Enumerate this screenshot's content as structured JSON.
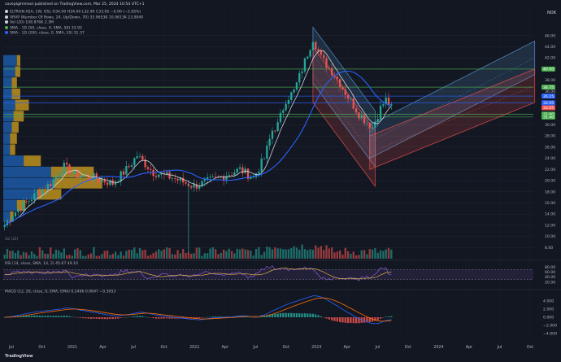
{
  "publisher": "saveplgimmeol published on TradingView.com, Mar 25, 2024 10:54 UTC+1",
  "currency": "NOK",
  "brand": "TradingView",
  "legend_lines": [
    {
      "text": "ELTRON ASA, 1W, OSL  O34.00 H34.00 L32.90 C33.05 −0.90 (−2.65%)",
      "color": "#d1d4dc"
    },
    {
      "text": "VRVP (Number Of Rows, 24, Up/Down, 70)  33.9653K  10.0613K  23.9040",
      "color": "#d1d4dc"
    },
    {
      "text": "Vol (20)  108.876K  2.3M",
      "color": "#d1d4dc"
    },
    {
      "text": "SMA - 1D (50, close, 0, SMA, 50)  33.95",
      "color": "#4caf50"
    },
    {
      "text": "SMA - 1D (200, close, 0, SMA, 20)  31.37",
      "color": "#2962ff"
    }
  ],
  "colors": {
    "up": "#26a69a",
    "down": "#ef5350",
    "sma_fast": "#e0e3eb",
    "sma_slow": "#2962ff",
    "vp_up": "#1e6fd0",
    "vp_down": "#d4a21e",
    "rsi": "#7e57c2",
    "macd": "#2962ff",
    "signal": "#ff6d00"
  },
  "chart_data": [
    {
      "type": "candlestick",
      "title": "ELTRON ASA, 1W, OSL",
      "ylim": [
        6,
        48
      ],
      "y_ticks": [
        8,
        10,
        12,
        14,
        16,
        18,
        20,
        22,
        24,
        26,
        28,
        30,
        32,
        34,
        36,
        38,
        40,
        42,
        44,
        46
      ],
      "x_ticks": [
        "Jul",
        "Oct",
        "2021",
        "Apr",
        "Jul",
        "Oct",
        "2022",
        "Apr",
        "Jul",
        "Oct",
        "2023",
        "Apr",
        "Jul",
        "Oct",
        "2024",
        "Apr",
        "Jul",
        "Oct"
      ],
      "weeks": 196,
      "history_weeks": 144,
      "anchor_points": [
        [
          0,
          12
        ],
        [
          3,
          14
        ],
        [
          9,
          16.5
        ],
        [
          17,
          19.5
        ],
        [
          22,
          22.5
        ],
        [
          26,
          21
        ],
        [
          33,
          20.5
        ],
        [
          40,
          19.5
        ],
        [
          46,
          22.5
        ],
        [
          49,
          24.5
        ],
        [
          55,
          21.5
        ],
        [
          62,
          20.5
        ],
        [
          70,
          19
        ],
        [
          79,
          20.5
        ],
        [
          87,
          22
        ],
        [
          92,
          20.5
        ],
        [
          96,
          24
        ],
        [
          99,
          29
        ],
        [
          101,
          30
        ],
        [
          104,
          34.5
        ],
        [
          107,
          36
        ],
        [
          110,
          40
        ],
        [
          114,
          45.5
        ],
        [
          117,
          42
        ],
        [
          122,
          39
        ],
        [
          127,
          35
        ],
        [
          131,
          32
        ],
        [
          136,
          29.5
        ],
        [
          139,
          33
        ],
        [
          141,
          34.5
        ],
        [
          143,
          33
        ]
      ],
      "price_labels": [
        {
          "value": 40.0,
          "text": "40.00",
          "color": "#4caf50"
        },
        {
          "value": 36.75,
          "text": "36.75",
          "color": "#4caf50"
        },
        {
          "value": 35.15,
          "text": "35.15",
          "color": "#2962ff"
        },
        {
          "value": 33.95,
          "text": "33.95",
          "color": "#2962ff"
        },
        {
          "value": 33.05,
          "text": "33.05",
          "color": "#ef5350"
        },
        {
          "value": 31.9,
          "text": "31.90",
          "color": "#4caf50"
        },
        {
          "value": 31.4,
          "text": "31.40",
          "color": "#4caf50"
        }
      ],
      "horizontal_levels": [
        {
          "value": 40.0,
          "color": "#4caf50"
        },
        {
          "value": 36.75,
          "color": "#4caf50"
        },
        {
          "value": 35.15,
          "color": "#2962ff"
        },
        {
          "value": 33.95,
          "color": "#2962ff"
        },
        {
          "value": 31.9,
          "color": "#4caf50"
        },
        {
          "value": 31.4,
          "color": "#4caf50"
        }
      ],
      "channels": [
        {
          "from": [
            114,
            47.5
          ],
          "to": [
            137,
            32.5
          ],
          "width": 10.0,
          "color": "#5b9bd5"
        },
        {
          "from": [
            114,
            44.0
          ],
          "to": [
            137,
            29.0
          ],
          "width": 10.0,
          "color": "#ef5350"
        },
        {
          "from": [
            135,
            30.0
          ],
          "to": [
            196,
            45.0
          ],
          "width": 6.0,
          "color": "#5b9bd5"
        },
        {
          "from": [
            135,
            28.0
          ],
          "to": [
            196,
            40.0
          ],
          "width": 6.0,
          "color": "#ef5350"
        }
      ],
      "volume_profile": [
        {
          "price": 41.5,
          "up": 0.08,
          "down": 0.02
        },
        {
          "price": 39.5,
          "up": 0.07,
          "down": 0.03
        },
        {
          "price": 37.5,
          "up": 0.05,
          "down": 0.03
        },
        {
          "price": 35.5,
          "up": 0.05,
          "down": 0.05
        },
        {
          "price": 33.5,
          "up": 0.07,
          "down": 0.08
        },
        {
          "price": 31.5,
          "up": 0.06,
          "down": 0.06
        },
        {
          "price": 29.5,
          "up": 0.05,
          "down": 0.04
        },
        {
          "price": 27.5,
          "up": 0.04,
          "down": 0.04
        },
        {
          "price": 25.5,
          "up": 0.04,
          "down": 0.03
        },
        {
          "price": 23.5,
          "up": 0.12,
          "down": 0.1
        },
        {
          "price": 21.5,
          "up": 0.28,
          "down": 0.25
        },
        {
          "price": 19.5,
          "up": 0.3,
          "down": 0.28
        },
        {
          "price": 17.5,
          "up": 0.2,
          "down": 0.14
        },
        {
          "price": 15.5,
          "up": 0.08,
          "down": 0.05
        },
        {
          "price": 13.5,
          "up": 0.04,
          "down": 0.02
        }
      ]
    },
    {
      "type": "bar",
      "title": "Vol (20)",
      "ylim": [
        0,
        1
      ]
    },
    {
      "type": "line",
      "title": "RSI (14, close, SMA, 14, 2)  45.67  49.10",
      "ylim": [
        0,
        100
      ],
      "y_ticks": [
        20,
        40,
        60,
        80
      ],
      "band": [
        30,
        70
      ]
    },
    {
      "type": "line",
      "title": "MACD (12, 26, close, 9, EMA, EMA)  0.2406  0.0647  −0.3053",
      "ylim": [
        -6,
        6
      ],
      "y_ticks": [
        -4.0,
        -2.0,
        0.0,
        2.0,
        4.0
      ],
      "y_tick_labels": [
        "−4.000",
        "−2.000",
        "0.000",
        "2.000",
        "4.000"
      ]
    }
  ]
}
